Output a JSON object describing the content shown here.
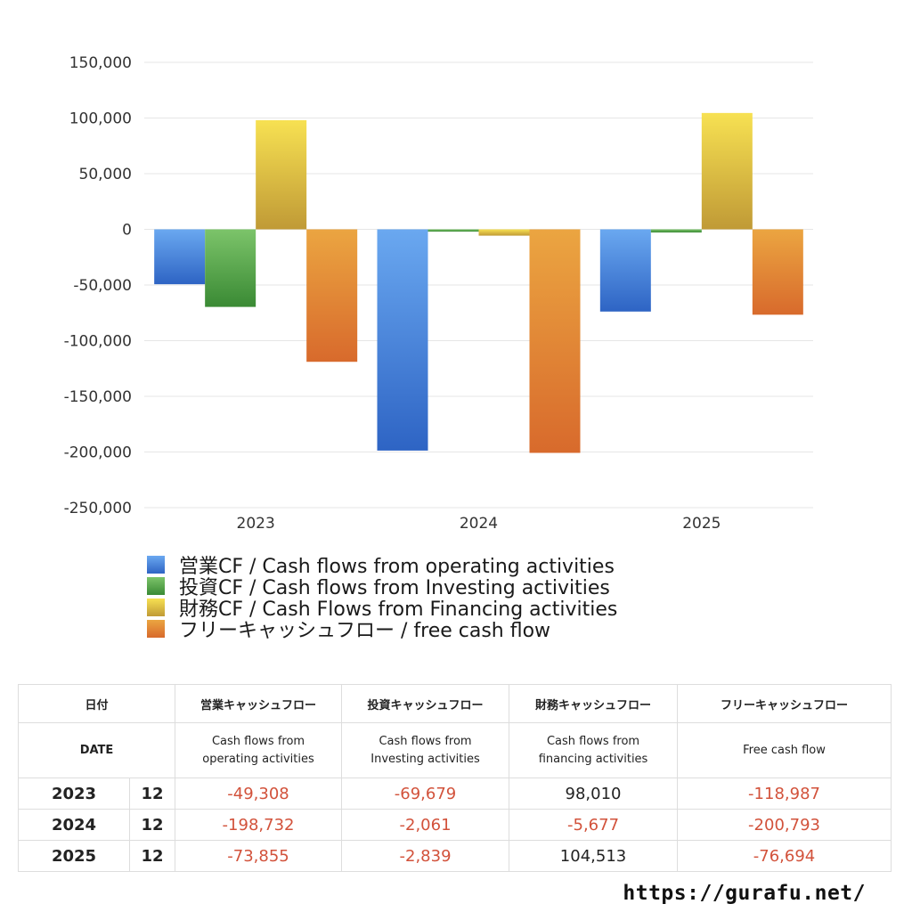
{
  "chart_data": {
    "type": "bar",
    "categories": [
      "2023",
      "2024",
      "2025"
    ],
    "ylim": [
      -250000,
      150000
    ],
    "yticks": [
      150000,
      100000,
      50000,
      0,
      -50000,
      -100000,
      -150000,
      -200000,
      -250000
    ],
    "ytick_labels": [
      "150,000",
      "100,000",
      "50,000",
      "0",
      "-50,000",
      "-100,000",
      "-150,000",
      "-200,000",
      "-250,000"
    ],
    "grid": true,
    "legend_position": "bottom",
    "series": [
      {
        "name": "営業CF / Cash flows from operating activities",
        "color_top": "#6aa8f0",
        "color_bottom": "#2e64c4",
        "values": [
          -49308,
          -198732,
          -73855
        ]
      },
      {
        "name": "投資CF / Cash flows from Investing activities",
        "color_top": "#7cc46a",
        "color_bottom": "#3a8a34",
        "values": [
          -69679,
          -2061,
          -2839
        ]
      },
      {
        "name": "財務CF / Cash Flows from Financing activities",
        "color_top": "#f7e152",
        "color_bottom": "#c09a36",
        "values": [
          98010,
          -5677,
          104513
        ]
      },
      {
        "name": "フリーキャッシュフロー / free cash flow",
        "color_top": "#eba541",
        "color_bottom": "#d86a2c",
        "values": [
          -118987,
          -200793,
          -76694
        ]
      }
    ]
  },
  "table": {
    "headers_jp": [
      "日付",
      "営業キャッシュフロー",
      "投資キャッシュフロー",
      "財務キャッシュフロー",
      "フリーキャッシュフロー"
    ],
    "headers_en": [
      "DATE",
      "Cash flows from",
      "operating activities",
      "Cash flows from",
      "Investing activities",
      "Cash flows from",
      "financing activities",
      "Free cash flow"
    ],
    "rows": [
      {
        "year": "2023",
        "month": "12",
        "op": "-49,308",
        "inv": "-69,679",
        "fin": "98,010",
        "free": "-118,987"
      },
      {
        "year": "2024",
        "month": "12",
        "op": "-198,732",
        "inv": "-2,061",
        "fin": "-5,677",
        "free": "-200,793"
      },
      {
        "year": "2025",
        "month": "12",
        "op": "-73,855",
        "inv": "-2,839",
        "fin": "104,513",
        "free": "-76,694"
      }
    ]
  },
  "footer": {
    "url": "https://gurafu.net/"
  }
}
